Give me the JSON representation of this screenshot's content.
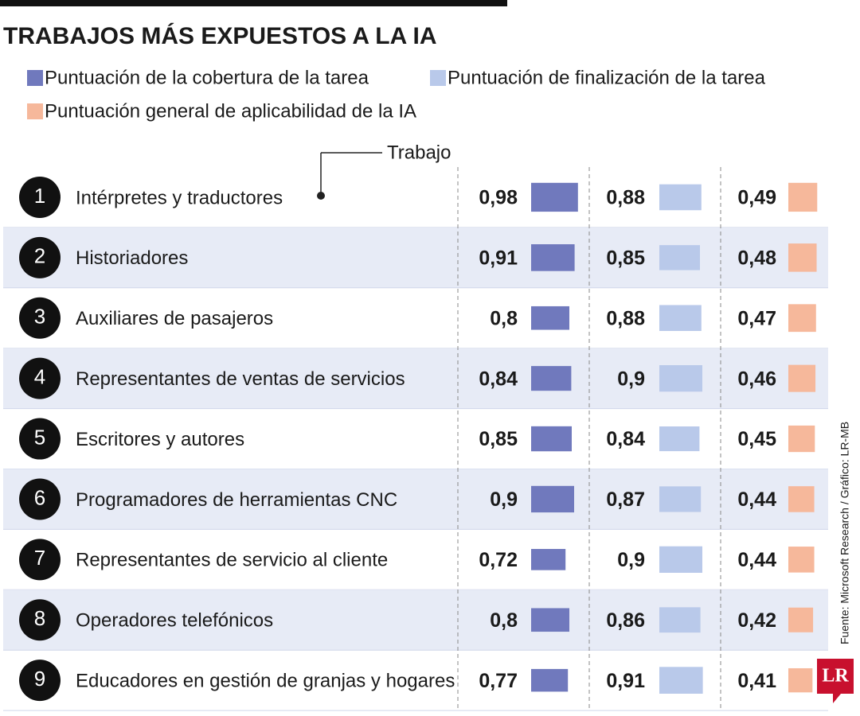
{
  "chart_data": {
    "type": "bar",
    "title": "TRABAJOS MÁS EXPUESTOS A LA IA",
    "annotation": "Trabajo",
    "source": "Fuente: Microsoft Research / Gráfico: LR-MB",
    "logo": "LR",
    "ranks": [
      1,
      2,
      3,
      4,
      5,
      6,
      7,
      8,
      9
    ],
    "categories": [
      "Intérpretes y traductores",
      "Historiadores",
      "Auxiliares de pasajeros",
      "Representantes de ventas de servicios",
      "Escritores y autores",
      "Programadores de herramientas CNC",
      "Representantes de servicio al cliente",
      "Operadores telefónicos",
      "Educadores en gestión de granjas y hogares"
    ],
    "series": [
      {
        "name": "Puntuación de la cobertura de la tarea",
        "color": "#7079bd",
        "values": [
          0.98,
          0.91,
          0.8,
          0.84,
          0.85,
          0.9,
          0.72,
          0.8,
          0.77
        ],
        "value_labels": [
          "0,98",
          "0,91",
          "0,8",
          "0,84",
          "0,85",
          "0,9",
          "0,72",
          "0,8",
          "0,77"
        ]
      },
      {
        "name": "Puntuación de finalización de la tarea",
        "color": "#b9c9ea",
        "values": [
          0.88,
          0.85,
          0.88,
          0.9,
          0.84,
          0.87,
          0.9,
          0.86,
          0.91
        ],
        "value_labels": [
          "0,88",
          "0,85",
          "0,88",
          "0,9",
          "0,84",
          "0,87",
          "0,9",
          "0,86",
          "0,91"
        ]
      },
      {
        "name": "Puntuación general de aplicabilidad de la IA",
        "color": "#f6b89b",
        "values": [
          0.49,
          0.48,
          0.47,
          0.46,
          0.45,
          0.44,
          0.44,
          0.42,
          0.41
        ],
        "value_labels": [
          "0,49",
          "0,48",
          "0,47",
          "0,46",
          "0,45",
          "0,44",
          "0,44",
          "0,42",
          "0,41"
        ]
      }
    ]
  }
}
